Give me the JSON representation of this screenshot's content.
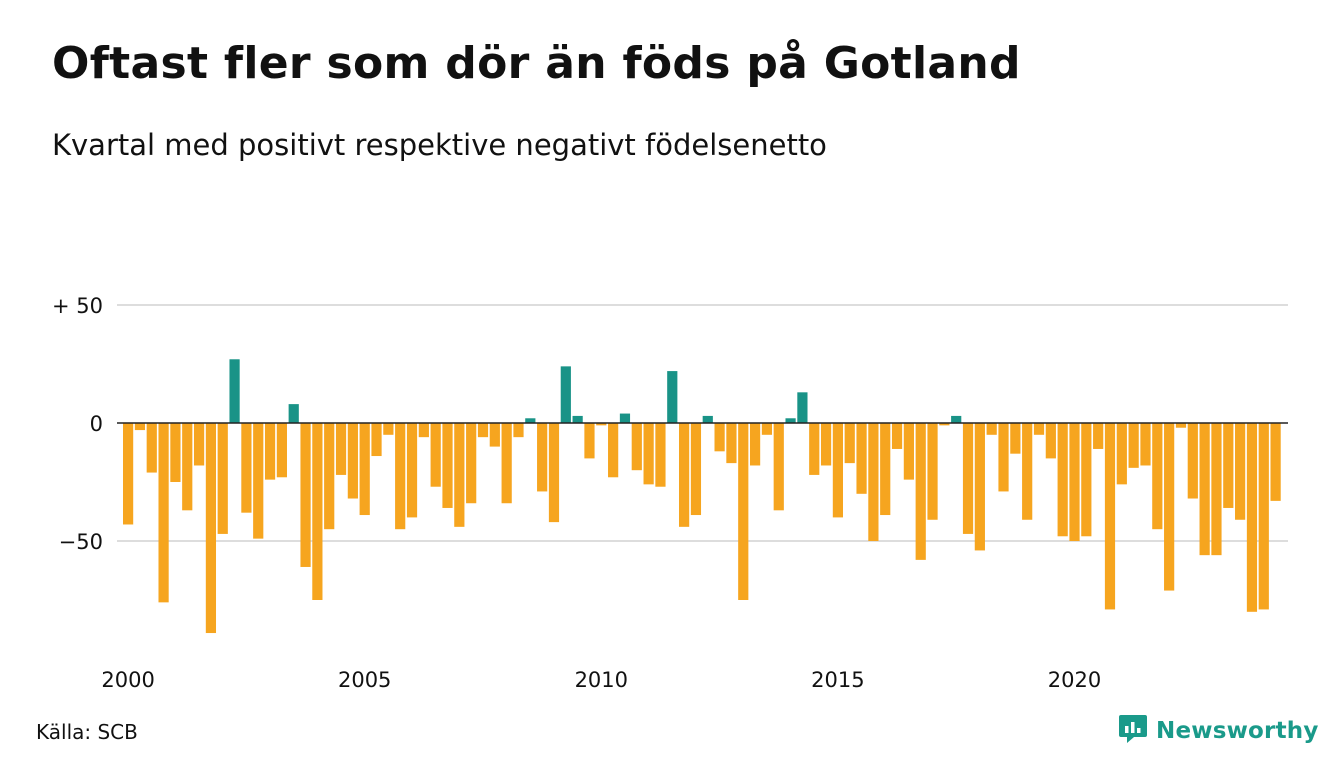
{
  "header": {
    "title": "Oftast fler som dör än föds på Gotland",
    "subtitle": "Kvartal med positivt respektive negativt födelsenetto"
  },
  "footer": {
    "source": "Källa: SCB",
    "brand": "Newsworthy",
    "brand_icon": "newsworthy-logo-icon"
  },
  "colors": {
    "positive": "#199387",
    "negative": "#f6a51f",
    "grid": "#dddddd",
    "text": "#111111"
  },
  "chart_data": {
    "type": "bar",
    "x_start": "2000Q1",
    "ylim": [
      -95,
      60
    ],
    "y_ticks": [
      {
        "value": 50,
        "label": "+ 50"
      },
      {
        "value": 0,
        "label": "0"
      },
      {
        "value": -50,
        "label": "−50"
      }
    ],
    "x_ticks": [
      {
        "year": 2000,
        "label": "2000"
      },
      {
        "year": 2005,
        "label": "2005"
      },
      {
        "year": 2010,
        "label": "2010"
      },
      {
        "year": 2015,
        "label": "2015"
      },
      {
        "year": 2020,
        "label": "2020"
      }
    ],
    "grid": true,
    "legend": "none",
    "values": [
      -43,
      -3,
      -21,
      -76,
      -25,
      -37,
      -18,
      -89,
      -47,
      27,
      -38,
      -49,
      -24,
      -23,
      8,
      -61,
      -75,
      -45,
      -22,
      -32,
      -39,
      -14,
      -5,
      -45,
      -40,
      -6,
      -27,
      -36,
      -44,
      -34,
      -6,
      -10,
      -34,
      -6,
      2,
      -29,
      -42,
      24,
      3,
      -15,
      -1,
      -23,
      4,
      -20,
      -26,
      -27,
      22,
      -44,
      -39,
      3,
      -12,
      -17,
      -75,
      -18,
      -5,
      -37,
      2,
      13,
      -22,
      -18,
      -40,
      -17,
      -30,
      -50,
      -39,
      -11,
      -24,
      -58,
      -41,
      -1,
      3,
      -47,
      -54,
      -5,
      -29,
      -13,
      -41,
      -5,
      -15,
      -48,
      -50,
      -48,
      -11,
      -79,
      -26,
      -19,
      -18,
      -45,
      -71,
      -2,
      -32,
      -56,
      -56,
      -36,
      -41,
      -80,
      -79,
      -33
    ]
  }
}
